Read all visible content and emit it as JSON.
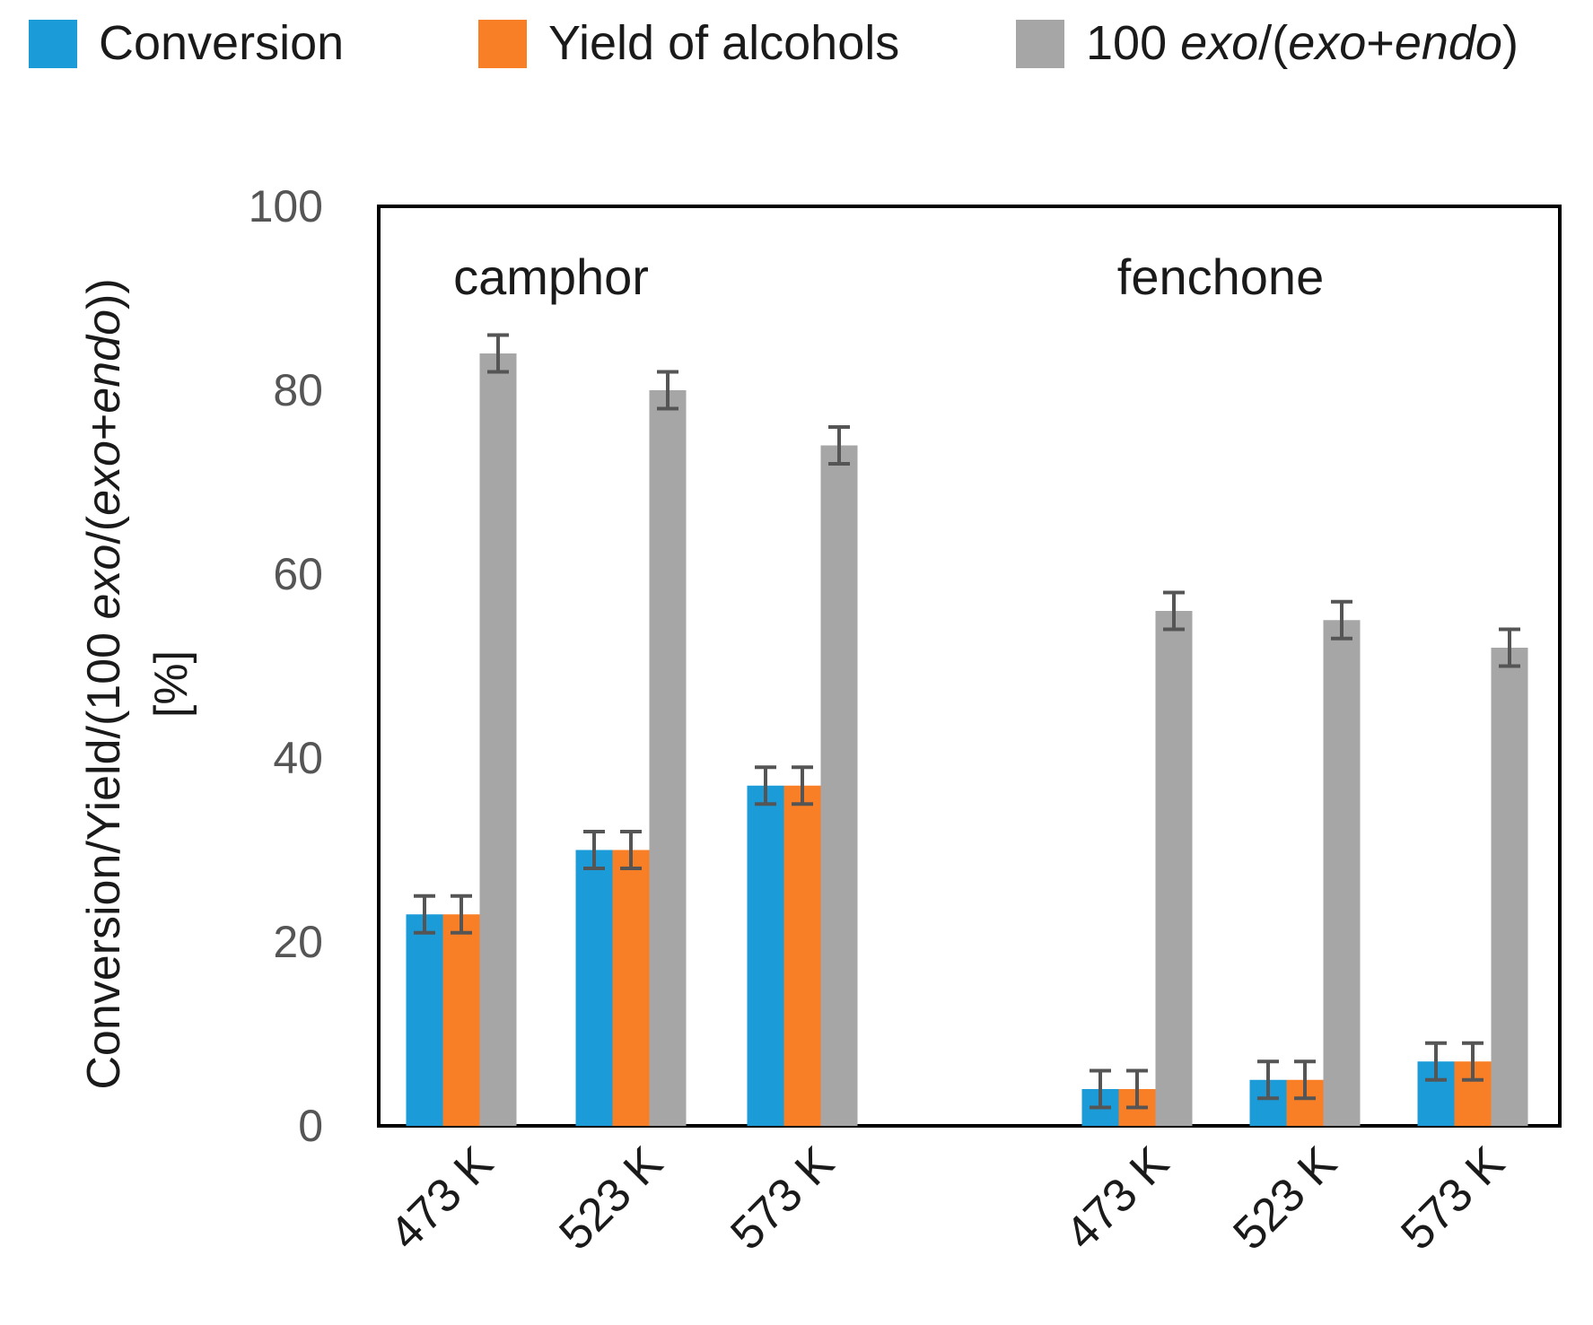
{
  "chart_data": {
    "type": "bar",
    "legend": {
      "placement": "top",
      "entries": [
        {
          "label_plain": "Conversion",
          "parts": [
            {
              "t": "Conversion",
              "i": false
            }
          ]
        },
        {
          "label_plain": "Yield of alcohols",
          "parts": [
            {
              "t": "Yield of alcohols",
              "i": false
            }
          ]
        },
        {
          "label_plain": "100 exo/(exo+endo)",
          "parts": [
            {
              "t": "100 ",
              "i": false
            },
            {
              "t": "exo",
              "i": true
            },
            {
              "t": "/(",
              "i": false
            },
            {
              "t": "exo",
              "i": true
            },
            {
              "t": "+",
              "i": false
            },
            {
              "t": "endo",
              "i": true
            },
            {
              "t": ")",
              "i": false
            }
          ]
        }
      ]
    },
    "ylabel": {
      "line1_parts": [
        {
          "t": "Conversion/Yield/(100 ",
          "i": false
        },
        {
          "t": "exo",
          "i": true
        },
        {
          "t": "/(",
          "i": false
        },
        {
          "t": "exo",
          "i": true
        },
        {
          "t": "+",
          "i": false
        },
        {
          "t": "endo",
          "i": true
        },
        {
          "t": "))",
          "i": false
        }
      ],
      "line2": "[%]"
    },
    "ylim": [
      0,
      100
    ],
    "yticks": [
      0,
      20,
      40,
      60,
      80,
      100
    ],
    "grid": false,
    "groups": [
      {
        "name": "camphor",
        "categories": [
          "473 K",
          "523 K",
          "573 K"
        ]
      },
      {
        "name": "fenchone",
        "categories": [
          "473 K",
          "523 K",
          "573 K"
        ]
      }
    ],
    "series": [
      {
        "name": "Conversion",
        "color": "#1b9bd7",
        "values": [
          23,
          30,
          37,
          4,
          5,
          7
        ],
        "errors": [
          2,
          2,
          2,
          2,
          2,
          2
        ]
      },
      {
        "name": "Yield of alcohols",
        "color": "#f97f26",
        "values": [
          23,
          30,
          37,
          4,
          5,
          7
        ],
        "errors": [
          2,
          2,
          2,
          2,
          2,
          2
        ]
      },
      {
        "name": "100 exo/(exo+endo)",
        "color": "#a6a6a6",
        "values": [
          84,
          80,
          74,
          56,
          55,
          52
        ],
        "errors": [
          2,
          2,
          2,
          2,
          2,
          2
        ]
      }
    ]
  }
}
